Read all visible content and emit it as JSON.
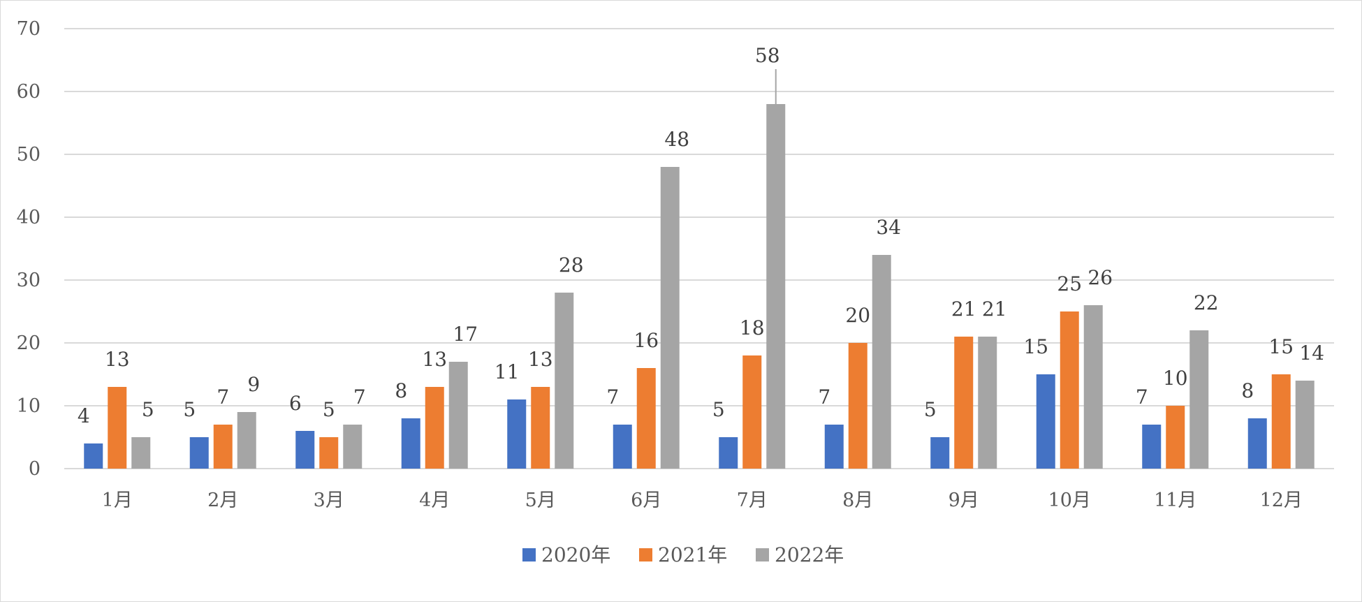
{
  "chart_data": {
    "type": "bar",
    "title": "",
    "xlabel": "",
    "ylabel": "",
    "categories": [
      "1月",
      "2月",
      "3月",
      "4月",
      "5月",
      "6月",
      "7月",
      "8月",
      "9月",
      "10月",
      "11月",
      "12月"
    ],
    "series": [
      {
        "name": "2020年",
        "color": "#4472c4",
        "values": [
          4,
          5,
          6,
          8,
          11,
          7,
          5,
          7,
          5,
          15,
          7,
          8
        ]
      },
      {
        "name": "2021年",
        "color": "#ed7d31",
        "values": [
          13,
          7,
          5,
          13,
          13,
          16,
          18,
          20,
          21,
          25,
          10,
          15
        ]
      },
      {
        "name": "2022年",
        "color": "#a5a5a5",
        "values": [
          5,
          9,
          7,
          17,
          28,
          48,
          58,
          34,
          21,
          26,
          22,
          14
        ]
      }
    ],
    "ylim": [
      0,
      70
    ],
    "yticks": [
      "0",
      "10",
      "20",
      "30",
      "40",
      "50",
      "60",
      "70"
    ],
    "grid": true,
    "legend": "bottom-center",
    "gridColor": "#d9d9d9"
  }
}
